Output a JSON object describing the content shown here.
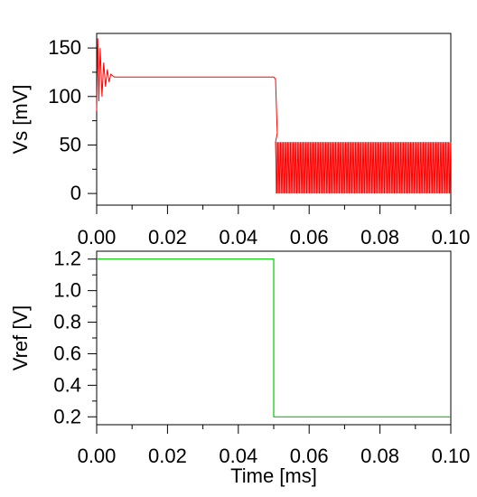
{
  "chart_data": [
    {
      "type": "line",
      "ylabel": "Vs [mV]",
      "xlabel": "",
      "xlim": [
        0,
        0.1
      ],
      "ylim": [
        -12,
        165
      ],
      "x_ticks": [
        0.0,
        0.02,
        0.04,
        0.06,
        0.08,
        0.1
      ],
      "x_tick_labels": [
        "0.00",
        "0.02",
        "0.04",
        "0.06",
        "0.08",
        "0.10"
      ],
      "y_ticks": [
        0,
        50,
        100,
        150
      ],
      "y_tick_labels": [
        "0",
        "50",
        "100",
        "150"
      ],
      "grid": false,
      "series": [
        {
          "color": "#ff0000",
          "description_points": {
            "x": [
              0.0,
              0.0003,
              0.0006,
              0.001,
              0.0015,
              0.002,
              0.0025,
              0.003,
              0.0035,
              0.004,
              0.005,
              0.05,
              0.0505,
              0.051
            ],
            "y": [
              85,
              160,
              95,
              150,
              100,
              135,
              110,
              128,
              115,
              123,
              120,
              120,
              118,
              62
            ]
          },
          "oscillation": {
            "x_range": [
              0.0505,
              0.1
            ],
            "min": 0,
            "max": 53
          }
        }
      ]
    },
    {
      "type": "line",
      "ylabel": "Vref [V]",
      "xlabel": "Time [ms]",
      "xlim": [
        0,
        0.1
      ],
      "ylim": [
        0.15,
        1.25
      ],
      "x_ticks": [
        0.0,
        0.02,
        0.04,
        0.06,
        0.08,
        0.1
      ],
      "x_tick_labels": [
        "0.00",
        "0.02",
        "0.04",
        "0.06",
        "0.08",
        "0.10"
      ],
      "y_ticks": [
        0.2,
        0.4,
        0.6,
        0.8,
        1.0,
        1.2
      ],
      "y_tick_labels": [
        "0.2",
        "0.4",
        "0.6",
        "0.8",
        "1.0",
        "1.2"
      ],
      "grid": false,
      "series": [
        {
          "color": "#00cc00",
          "x": [
            0.0,
            0.05,
            0.05,
            0.1
          ],
          "y": [
            1.2,
            1.2,
            0.2,
            0.2
          ]
        }
      ]
    }
  ]
}
